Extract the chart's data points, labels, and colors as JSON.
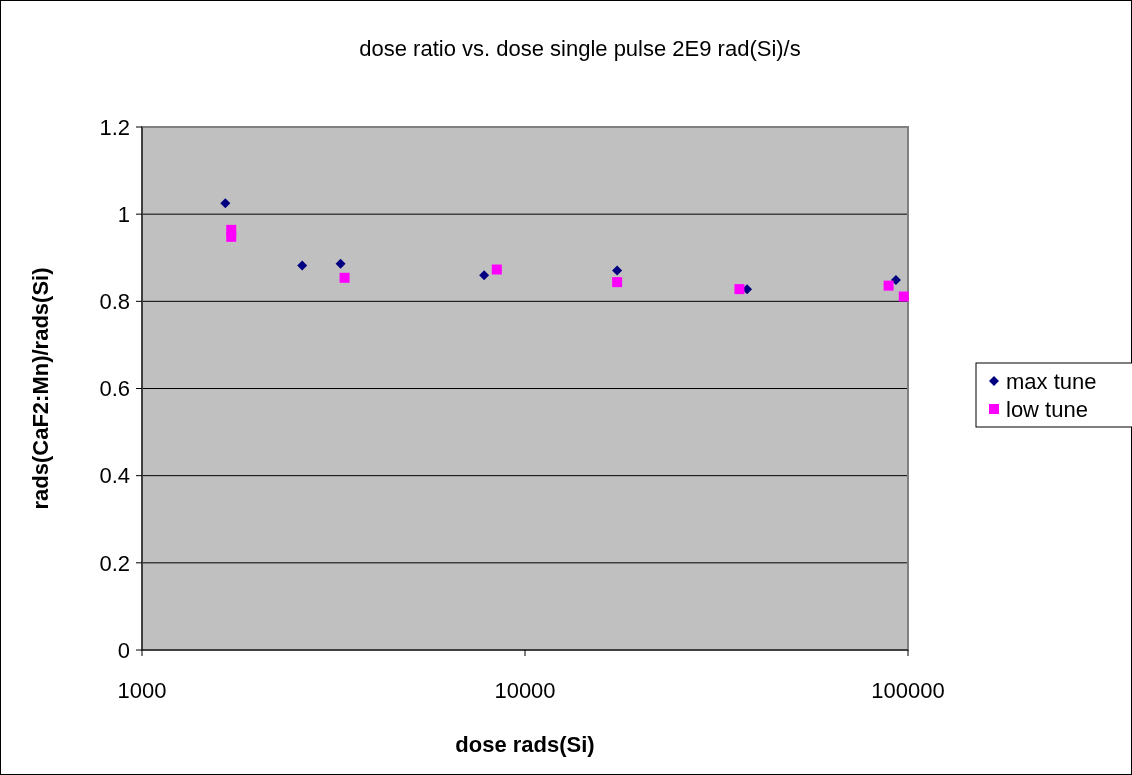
{
  "chart_data": {
    "type": "scatter",
    "title": "dose ratio vs. dose single pulse 2E9 rad(Si)/s",
    "xlabel": "dose rads(Si)",
    "ylabel": "rads(CaF2:Mn)/rads(Si)",
    "log": "x",
    "xlim": [
      1000,
      100000
    ],
    "xticks": [
      1000,
      10000,
      100000
    ],
    "ylim": [
      0,
      1.2
    ],
    "yticks": [
      0,
      0.2,
      0.4,
      0.6,
      0.8,
      1,
      1.2
    ],
    "grid": "y",
    "legend": "right",
    "series": [
      {
        "name": "max tune",
        "color": "#000080",
        "marker": "diamond",
        "x": [
          1650,
          2620,
          3300,
          7820,
          17400,
          38000,
          93000
        ],
        "values": [
          1.025,
          0.882,
          0.886,
          0.86,
          0.871,
          0.828,
          0.849
        ]
      },
      {
        "name": "low tune",
        "color": "#ff00ff",
        "marker": "square",
        "x": [
          1710,
          1710,
          3380,
          8440,
          17400,
          36300,
          89000,
          97500
        ],
        "values": [
          0.964,
          0.948,
          0.854,
          0.873,
          0.844,
          0.828,
          0.836,
          0.811
        ]
      }
    ]
  }
}
